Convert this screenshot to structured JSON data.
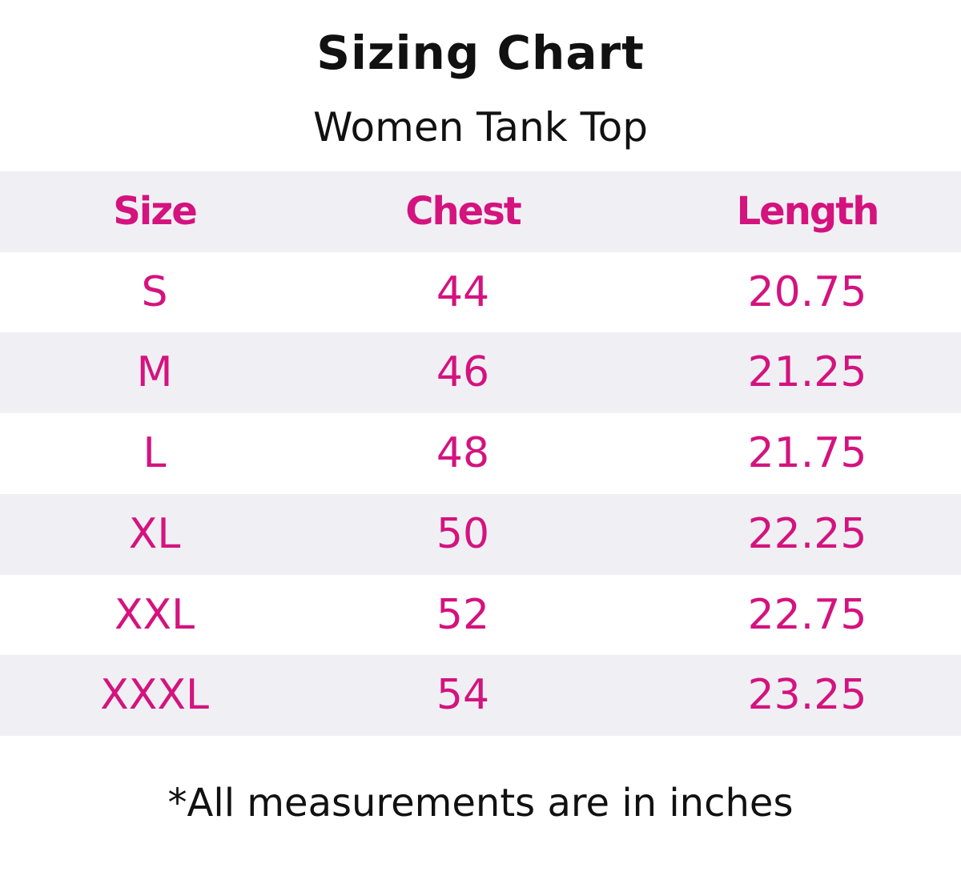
{
  "header": {
    "title": "Sizing Chart",
    "subtitle": "Women Tank Top"
  },
  "table": {
    "columns": [
      "Size",
      "Chest",
      "Length"
    ],
    "rows": [
      [
        "S",
        "44",
        "20.75"
      ],
      [
        "M",
        "46",
        "21.25"
      ],
      [
        "L",
        "48",
        "21.75"
      ],
      [
        "XL",
        "50",
        "22.25"
      ],
      [
        "XXL",
        "52",
        "22.75"
      ],
      [
        "XXXL",
        "54",
        "23.25"
      ]
    ]
  },
  "footnote": "*All measurements are in inches"
}
